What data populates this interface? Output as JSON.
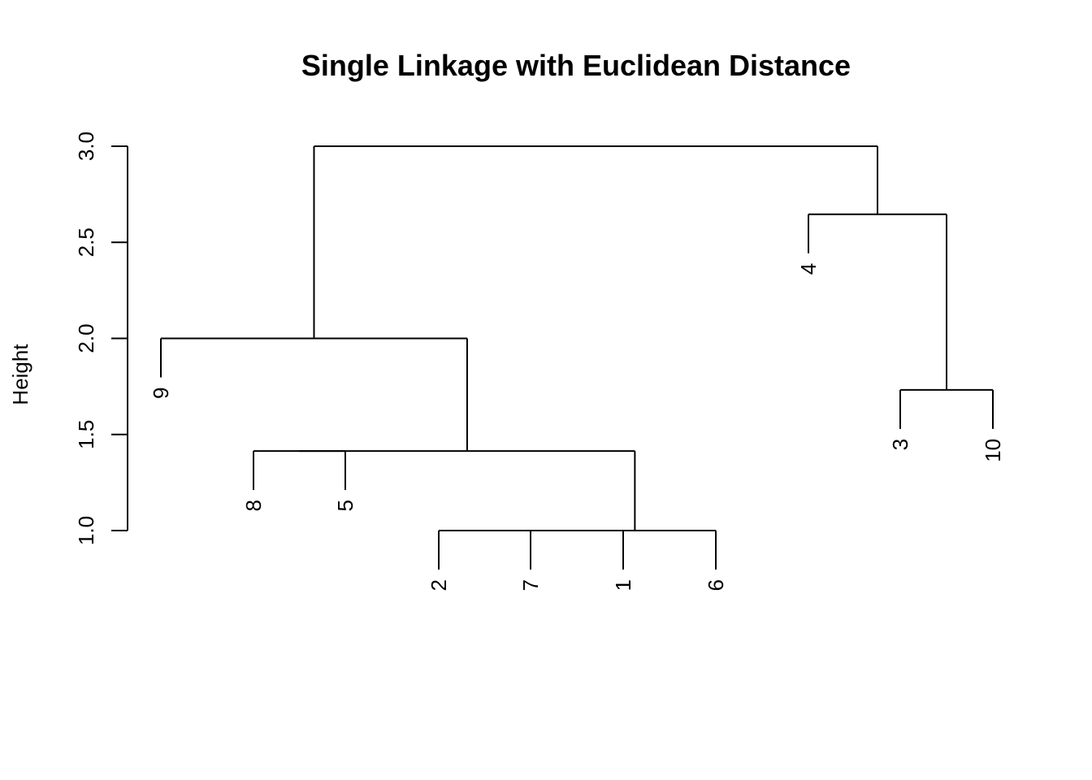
{
  "chart_data": {
    "type": "dendrogram",
    "title": "Single Linkage with Euclidean Distance",
    "xlabel": "",
    "ylabel": "Height",
    "ylim": [
      1.0,
      3.0
    ],
    "y_ticks": [
      "1.0",
      "1.5",
      "2.0",
      "2.5",
      "3.0"
    ],
    "y_tick_values": [
      1.0,
      1.5,
      2.0,
      2.5,
      3.0
    ],
    "leaf_order": [
      "9",
      "8",
      "5",
      "2",
      "7",
      "1",
      "6",
      "4",
      "3",
      "10"
    ],
    "merges": [
      {
        "left": "2",
        "right": "7",
        "height": 1.0
      },
      {
        "left": "2-7",
        "right": "1",
        "height": 1.0
      },
      {
        "left": "2-7-1",
        "right": "6",
        "height": 1.0
      },
      {
        "left": "8",
        "right": "5",
        "height": 1.414
      },
      {
        "left": "8-5",
        "right": "2-7-1-6",
        "height": 1.414
      },
      {
        "left": "3",
        "right": "10",
        "height": 1.732
      },
      {
        "left": "9",
        "right": "8-5-2-7-1-6",
        "height": 2.0
      },
      {
        "left": "4",
        "right": "3-10",
        "height": 2.646
      },
      {
        "left": "9-8-5-2-7-1-6",
        "right": "4-3-10",
        "height": 3.0
      }
    ]
  }
}
